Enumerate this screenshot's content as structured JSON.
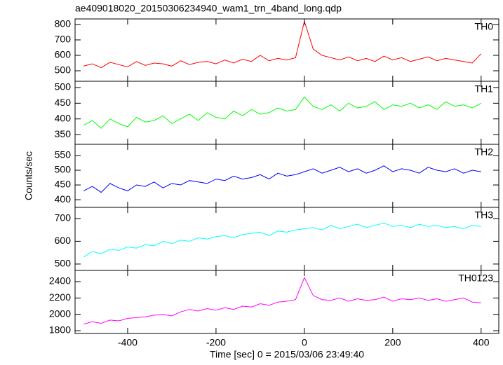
{
  "chart_data": [
    {
      "type": "line",
      "title": "ae409018020_20150306234940_wam1_trn_4band_long.qdp",
      "ylabel": "Counts/sec",
      "label": "TH0",
      "color": "#ff0000",
      "x": [
        -500,
        -480,
        -460,
        -440,
        -420,
        -400,
        -380,
        -360,
        -340,
        -320,
        -300,
        -280,
        -260,
        -240,
        -220,
        -200,
        -180,
        -160,
        -140,
        -120,
        -100,
        -80,
        -60,
        -40,
        -20,
        0,
        20,
        40,
        60,
        80,
        100,
        120,
        140,
        160,
        180,
        200,
        220,
        240,
        260,
        280,
        300,
        320,
        340,
        360,
        380,
        400
      ],
      "values": [
        530,
        545,
        520,
        555,
        540,
        525,
        560,
        535,
        550,
        545,
        530,
        565,
        540,
        555,
        560,
        545,
        570,
        550,
        575,
        560,
        600,
        565,
        580,
        570,
        585,
        820,
        640,
        600,
        585,
        570,
        590,
        565,
        580,
        560,
        595,
        570,
        585,
        560,
        575,
        590,
        565,
        580,
        570,
        560,
        550,
        610
      ],
      "xlim": [
        -519,
        440
      ],
      "ylim": [
        432,
        836
      ],
      "yticks": [
        500,
        600,
        700,
        800
      ]
    },
    {
      "type": "line",
      "label": "TH1",
      "color": "#00ff00",
      "x": [
        -500,
        -480,
        -460,
        -440,
        -420,
        -400,
        -380,
        -360,
        -340,
        -320,
        -300,
        -280,
        -260,
        -240,
        -220,
        -200,
        -180,
        -160,
        -140,
        -120,
        -100,
        -80,
        -60,
        -40,
        -20,
        0,
        20,
        40,
        60,
        80,
        100,
        120,
        140,
        160,
        180,
        200,
        220,
        240,
        260,
        280,
        300,
        320,
        340,
        360,
        380,
        400
      ],
      "values": [
        380,
        395,
        370,
        400,
        385,
        375,
        405,
        390,
        395,
        410,
        385,
        400,
        415,
        395,
        420,
        405,
        400,
        425,
        410,
        430,
        415,
        420,
        435,
        425,
        430,
        470,
        440,
        430,
        445,
        425,
        450,
        435,
        440,
        455,
        430,
        445,
        440,
        450,
        435,
        445,
        430,
        455,
        440,
        445,
        435,
        450
      ],
      "xlim": [
        -519,
        440
      ],
      "ylim": [
        319,
        520
      ],
      "yticks": [
        350,
        400,
        450,
        500
      ]
    },
    {
      "type": "line",
      "label": "TH2",
      "color": "#0000ff",
      "x": [
        -500,
        -480,
        -460,
        -440,
        -420,
        -400,
        -380,
        -360,
        -340,
        -320,
        -300,
        -280,
        -260,
        -240,
        -220,
        -200,
        -180,
        -160,
        -140,
        -120,
        -100,
        -80,
        -60,
        -40,
        -20,
        0,
        20,
        40,
        60,
        80,
        100,
        120,
        140,
        160,
        180,
        200,
        220,
        240,
        260,
        280,
        300,
        320,
        340,
        360,
        380,
        400
      ],
      "values": [
        430,
        445,
        425,
        455,
        440,
        430,
        450,
        445,
        460,
        440,
        455,
        450,
        465,
        460,
        455,
        470,
        465,
        480,
        470,
        475,
        485,
        470,
        490,
        480,
        485,
        495,
        505,
        490,
        500,
        510,
        495,
        505,
        490,
        500,
        515,
        495,
        505,
        500,
        490,
        510,
        500,
        495,
        505,
        490,
        500,
        495
      ],
      "xlim": [
        -519,
        440
      ],
      "ylim": [
        374,
        588
      ],
      "yticks": [
        400,
        450,
        500,
        550
      ]
    },
    {
      "type": "line",
      "label": "TH3",
      "color": "#00ffff",
      "x": [
        -500,
        -480,
        -460,
        -440,
        -420,
        -400,
        -380,
        -360,
        -340,
        -320,
        -300,
        -280,
        -260,
        -240,
        -220,
        -200,
        -180,
        -160,
        -140,
        -120,
        -100,
        -80,
        -60,
        -40,
        -20,
        0,
        20,
        40,
        60,
        80,
        100,
        120,
        140,
        160,
        180,
        200,
        220,
        240,
        260,
        280,
        300,
        320,
        340,
        360,
        380,
        400
      ],
      "values": [
        530,
        555,
        545,
        565,
        560,
        575,
        570,
        585,
        580,
        600,
        590,
        605,
        600,
        615,
        610,
        620,
        625,
        615,
        630,
        635,
        640,
        625,
        645,
        640,
        650,
        655,
        660,
        650,
        670,
        655,
        665,
        675,
        660,
        670,
        680,
        665,
        670,
        660,
        675,
        665,
        670,
        660,
        665,
        655,
        670,
        665
      ],
      "xlim": [
        -519,
        440
      ],
      "ylim": [
        472,
        749
      ],
      "yticks": [
        500,
        600,
        700
      ]
    },
    {
      "type": "line",
      "label": "TH0123",
      "color": "#ff00ff",
      "xlabel": "Time [sec] 0 = 2015/03/06 23:49:40",
      "x": [
        -500,
        -480,
        -460,
        -440,
        -420,
        -400,
        -380,
        -360,
        -340,
        -320,
        -300,
        -280,
        -260,
        -240,
        -220,
        -200,
        -180,
        -160,
        -140,
        -120,
        -100,
        -80,
        -60,
        -40,
        -20,
        0,
        20,
        40,
        60,
        80,
        100,
        120,
        140,
        160,
        180,
        200,
        220,
        240,
        260,
        280,
        300,
        320,
        340,
        360,
        380,
        400
      ],
      "values": [
        1880,
        1910,
        1890,
        1930,
        1920,
        1950,
        1960,
        1970,
        1990,
        2000,
        1980,
        2030,
        2060,
        2040,
        2070,
        2050,
        2080,
        2060,
        2100,
        2090,
        2130,
        2110,
        2150,
        2160,
        2180,
        2450,
        2230,
        2180,
        2170,
        2200,
        2160,
        2190,
        2170,
        2180,
        2210,
        2160,
        2190,
        2180,
        2200,
        2170,
        2190,
        2160,
        2180,
        2200,
        2150,
        2140
      ],
      "xlim": [
        -519,
        440
      ],
      "ylim": [
        1766,
        2537
      ],
      "yticks": [
        1800,
        2000,
        2200,
        2400
      ],
      "xticks": [
        -400,
        -200,
        0,
        200,
        400
      ]
    }
  ]
}
